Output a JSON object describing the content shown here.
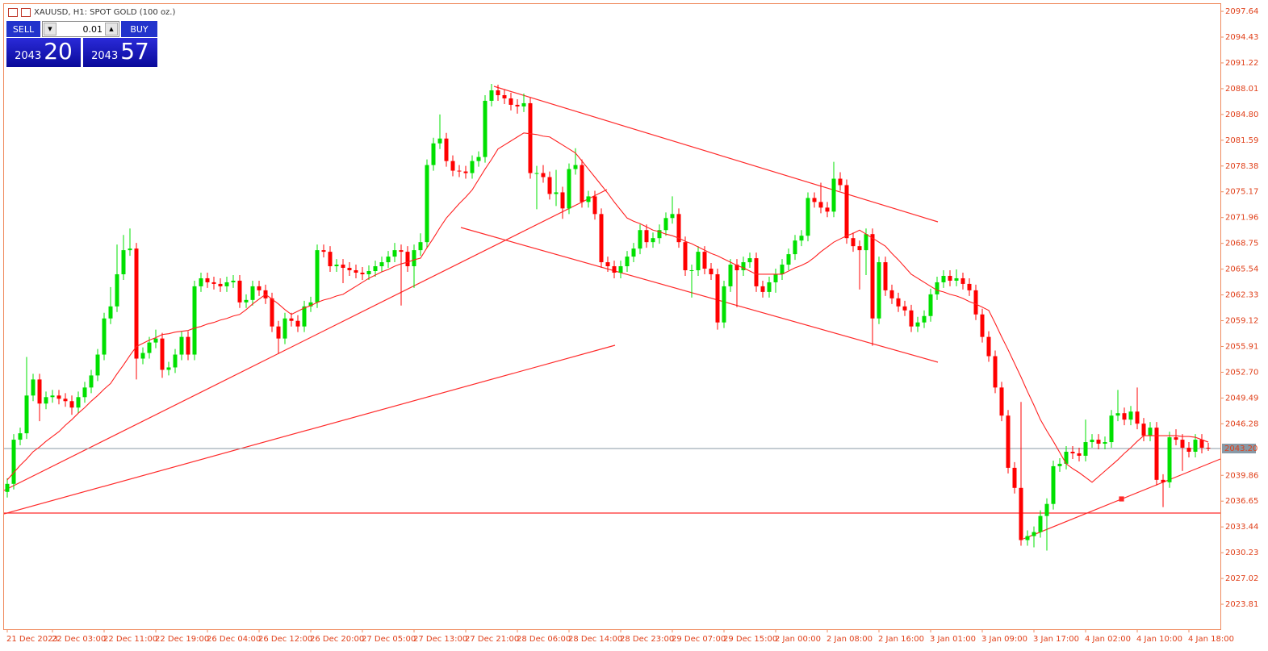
{
  "header": {
    "symbol": "XAUUSD, H1:  SPOT GOLD (100 oz.)"
  },
  "trade_panel": {
    "sell": "SELL",
    "lot": "0.01",
    "buy": "BUY",
    "bid_big": "2043",
    "bid_small": "20",
    "ask_big": "2043",
    "ask_small": "57"
  },
  "chart_data": {
    "type": "candlestick",
    "up_color": "#00e000",
    "down_color": "#ff0000",
    "grid": false,
    "categories": [
      "21 Dec 2023",
      null,
      null,
      null,
      null,
      null,
      null,
      "22 Dec 03:00",
      null,
      null,
      null,
      null,
      null,
      null,
      null,
      "22 Dec 11:00",
      null,
      null,
      null,
      null,
      null,
      null,
      null,
      "22 Dec 19:00",
      null,
      null,
      null,
      null,
      null,
      null,
      null,
      "26 Dec 04:00",
      null,
      null,
      null,
      null,
      null,
      null,
      null,
      "26 Dec 12:00",
      null,
      null,
      null,
      null,
      null,
      null,
      null,
      "26 Dec 20:00",
      null,
      null,
      null,
      null,
      null,
      null,
      null,
      "27 Dec 05:00",
      null,
      null,
      null,
      null,
      null,
      null,
      null,
      "27 Dec 13:00",
      null,
      null,
      null,
      null,
      null,
      null,
      null,
      "27 Dec 21:00",
      null,
      null,
      null,
      null,
      null,
      null,
      null,
      "28 Dec 06:00",
      null,
      null,
      null,
      null,
      null,
      null,
      null,
      "28 Dec 14:00",
      null,
      null,
      null,
      null,
      null,
      null,
      null,
      "28 Dec 23:00",
      null,
      null,
      null,
      null,
      null,
      null,
      null,
      "29 Dec 07:00",
      null,
      null,
      null,
      null,
      null,
      null,
      null,
      "29 Dec 15:00",
      null,
      null,
      null,
      null,
      null,
      null,
      null,
      "2 Jan 00:00",
      null,
      null,
      null,
      null,
      null,
      null,
      null,
      "2 Jan 08:00",
      null,
      null,
      null,
      null,
      null,
      null,
      null,
      "2 Jan 16:00",
      null,
      null,
      null,
      null,
      null,
      null,
      null,
      "3 Jan 01:00",
      null,
      null,
      null,
      null,
      null,
      null,
      null,
      "3 Jan 09:00",
      null,
      null,
      null,
      null,
      null,
      null,
      null,
      "3 Jan 17:00",
      null,
      null,
      null,
      null,
      null,
      null,
      null,
      "4 Jan 02:00",
      null,
      null,
      null,
      null,
      null,
      null,
      null,
      "4 Jan 10:00",
      null,
      null,
      null,
      null,
      null,
      null,
      null,
      "4 Jan 18:00",
      null,
      null,
      null
    ],
    "open": [
      2037.8,
      2038.8,
      2044.3,
      2045.1,
      2049.8,
      2051.8,
      2048.8,
      2049.6,
      2049.8,
      2049.4,
      2049.1,
      2048.3,
      2049.6,
      2050.8,
      2052.3,
      2054.9,
      2059.4,
      2060.9,
      2064.9,
      2067.9,
      2068.1,
      2054.4,
      2055.1,
      2056.4,
      2056.9,
      2053.0,
      2053.3,
      2054.9,
      2057.1,
      2054.9,
      2063.4,
      2064.4,
      2063.9,
      2063.7,
      2063.4,
      2063.9,
      2064.1,
      2061.4,
      2061.7,
      2063.4,
      2062.9,
      2061.9,
      2058.4,
      2056.9,
      2059.4,
      2059.1,
      2058.4,
      2060.9,
      2061.4,
      2067.9,
      2067.7,
      2065.9,
      2066.1,
      2065.7,
      2065.4,
      2065.1,
      2064.9,
      2065.3,
      2065.9,
      2066.4,
      2067.1,
      2067.9,
      2067.7,
      2065.9,
      2067.9,
      2068.9,
      2078.5,
      2081.2,
      2081.8,
      2079.0,
      2077.8,
      2077.7,
      2077.5,
      2079.0,
      2079.5,
      2086.5,
      2087.8,
      2087.2,
      2086.8,
      2086.0,
      2085.8,
      2086.2,
      2077.5,
      2077.5,
      2077.0,
      2074.9,
      2075.1,
      2073.1,
      2078.0,
      2078.5,
      2073.9,
      2074.6,
      2072.4,
      2066.4,
      2065.9,
      2065.1,
      2065.9,
      2067.1,
      2068.1,
      2070.4,
      2068.9,
      2069.4,
      2070.4,
      2071.9,
      2072.4,
      2068.9,
      2065.4,
      2065.4,
      2067.7,
      2065.6,
      2064.9,
      2058.9,
      2063.4,
      2066.1,
      2065.4,
      2066.4,
      2066.9,
      2063.4,
      2062.7,
      2063.9,
      2064.9,
      2066.1,
      2067.4,
      2069.1,
      2069.7,
      2074.4,
      2073.9,
      2073.2,
      2072.7,
      2076.8,
      2076.0,
      2069.4,
      2068.4,
      2067.9,
      2069.9,
      2059.4,
      2066.4,
      2062.9,
      2061.9,
      2060.9,
      2060.4,
      2058.4,
      2058.9,
      2059.7,
      2062.4,
      2063.9,
      2064.7,
      2064.1,
      2064.4,
      2063.7,
      2062.9,
      2059.9,
      2057.1,
      2054.7,
      2050.8,
      2047.3,
      2040.8,
      2038.3,
      2031.8,
      2032.3,
      2032.8,
      2034.8,
      2036.3,
      2041.0,
      2041.3,
      2042.8,
      2042.6,
      2042.3,
      2044.0,
      2044.3,
      2043.8,
      2044.0,
      2047.3,
      2047.6,
      2046.8,
      2047.8,
      2046.3,
      2044.8,
      2045.8,
      2039.3,
      2039.0,
      2044.6,
      2044.3,
      2043.3,
      2042.8,
      2044.3,
      2043.3
    ],
    "high": [
      2039.5,
      2045.0,
      2045.8,
      2054.6,
      2052.5,
      2052.5,
      2050.3,
      2050.5,
      2050.5,
      2050.1,
      2049.8,
      2050.3,
      2051.5,
      2053.0,
      2055.6,
      2060.1,
      2063.3,
      2068.6,
      2069.8,
      2070.6,
      2068.8,
      2055.8,
      2057.1,
      2058.0,
      2057.6,
      2054.0,
      2055.6,
      2057.8,
      2057.8,
      2064.1,
      2065.1,
      2065.1,
      2064.6,
      2064.4,
      2064.6,
      2064.8,
      2064.8,
      2062.4,
      2064.1,
      2064.1,
      2063.6,
      2062.6,
      2059.1,
      2060.1,
      2060.1,
      2059.8,
      2061.6,
      2062.1,
      2068.6,
      2068.6,
      2068.4,
      2066.8,
      2066.8,
      2066.4,
      2066.1,
      2065.8,
      2066.0,
      2066.6,
      2067.1,
      2067.8,
      2068.8,
      2068.6,
      2068.4,
      2068.6,
      2070.0,
      2079.2,
      2081.9,
      2084.8,
      2082.5,
      2079.7,
      2078.5,
      2078.4,
      2079.7,
      2080.2,
      2087.2,
      2088.6,
      2088.5,
      2087.9,
      2087.5,
      2086.7,
      2087.4,
      2086.9,
      2078.4,
      2078.5,
      2077.7,
      2077.9,
      2075.8,
      2078.7,
      2080.6,
      2079.2,
      2075.3,
      2075.3,
      2073.1,
      2067.1,
      2066.6,
      2066.6,
      2067.8,
      2068.8,
      2071.1,
      2071.1,
      2070.1,
      2071.1,
      2072.6,
      2074.6,
      2073.1,
      2069.6,
      2066.1,
      2068.4,
      2068.4,
      2066.3,
      2065.6,
      2064.1,
      2066.8,
      2066.8,
      2067.1,
      2067.6,
      2067.6,
      2064.1,
      2064.6,
      2065.6,
      2066.8,
      2068.1,
      2069.8,
      2070.4,
      2075.1,
      2075.1,
      2076.3,
      2073.9,
      2078.9,
      2077.6,
      2076.7,
      2070.1,
      2069.1,
      2070.6,
      2070.6,
      2067.1,
      2067.1,
      2063.6,
      2062.6,
      2061.6,
      2061.1,
      2059.6,
      2060.4,
      2063.1,
      2064.6,
      2065.4,
      2065.4,
      2065.5,
      2065.1,
      2064.4,
      2063.6,
      2060.6,
      2057.8,
      2055.4,
      2051.5,
      2048.0,
      2041.5,
      2049.0,
      2033.0,
      2033.5,
      2035.5,
      2037.0,
      2041.7,
      2042.0,
      2043.5,
      2043.5,
      2043.3,
      2046.8,
      2045.0,
      2045.0,
      2044.7,
      2048.0,
      2050.5,
      2048.3,
      2048.5,
      2050.8,
      2047.0,
      2046.5,
      2046.5,
      2040.0,
      2045.3,
      2045.6,
      2045.0,
      2044.0,
      2045.0,
      2045.0,
      2043.9
    ],
    "low": [
      2037.1,
      2038.1,
      2043.6,
      2044.4,
      2049.1,
      2046.6,
      2048.1,
      2048.9,
      2048.7,
      2048.4,
      2047.4,
      2047.6,
      2048.9,
      2050.1,
      2051.6,
      2054.2,
      2058.7,
      2060.2,
      2064.2,
      2067.2,
      2051.8,
      2053.7,
      2054.4,
      2055.7,
      2052.0,
      2052.3,
      2052.6,
      2054.2,
      2054.2,
      2054.2,
      2062.7,
      2063.2,
      2063.0,
      2062.7,
      2062.7,
      2063.2,
      2060.7,
      2060.7,
      2061.0,
      2062.2,
      2061.2,
      2057.7,
      2055.0,
      2056.2,
      2058.4,
      2057.7,
      2057.7,
      2060.2,
      2060.7,
      2067.0,
      2065.2,
      2065.2,
      2063.8,
      2064.7,
      2064.4,
      2064.2,
      2064.2,
      2064.6,
      2065.2,
      2065.7,
      2066.4,
      2061.0,
      2065.2,
      2063.2,
      2067.2,
      2068.2,
      2077.8,
      2080.5,
      2078.3,
      2077.1,
      2077.0,
      2076.8,
      2076.8,
      2078.3,
      2078.8,
      2085.8,
      2086.5,
      2086.1,
      2085.3,
      2084.9,
      2085.1,
      2076.8,
      2073.0,
      2076.3,
      2074.2,
      2073.4,
      2071.8,
      2072.4,
      2077.3,
      2073.2,
      2073.2,
      2071.7,
      2065.7,
      2065.2,
      2064.4,
      2064.4,
      2065.2,
      2066.4,
      2067.4,
      2068.2,
      2068.2,
      2068.7,
      2069.7,
      2071.2,
      2068.2,
      2064.7,
      2062.0,
      2064.7,
      2064.9,
      2064.2,
      2058.0,
      2058.2,
      2062.7,
      2060.8,
      2064.7,
      2065.7,
      2062.7,
      2062.0,
      2062.0,
      2062.6,
      2064.2,
      2065.4,
      2066.7,
      2068.4,
      2069.0,
      2073.2,
      2072.5,
      2072.0,
      2072.0,
      2075.3,
      2068.7,
      2067.7,
      2063.0,
      2064.8,
      2056.0,
      2058.7,
      2062.2,
      2061.2,
      2060.2,
      2059.7,
      2057.7,
      2057.7,
      2058.2,
      2059.0,
      2061.7,
      2063.2,
      2063.4,
      2063.4,
      2063.0,
      2062.2,
      2059.2,
      2056.4,
      2054.0,
      2050.1,
      2046.6,
      2040.1,
      2037.6,
      2031.1,
      2031.1,
      2030.9,
      2032.1,
      2030.5,
      2035.6,
      2040.3,
      2040.6,
      2041.9,
      2041.6,
      2041.6,
      2043.3,
      2043.1,
      2043.1,
      2043.3,
      2046.6,
      2046.1,
      2046.1,
      2045.6,
      2044.1,
      2044.1,
      2038.6,
      2035.9,
      2038.3,
      2043.6,
      2040.4,
      2042.1,
      2042.1,
      2042.6,
      2042.9
    ],
    "close": [
      2038.8,
      2044.3,
      2045.1,
      2049.8,
      2051.8,
      2048.8,
      2049.6,
      2049.8,
      2049.4,
      2049.1,
      2048.3,
      2049.6,
      2050.8,
      2052.3,
      2054.9,
      2059.4,
      2060.9,
      2064.9,
      2067.9,
      2068.1,
      2054.4,
      2055.1,
      2056.4,
      2056.9,
      2053.0,
      2053.3,
      2054.9,
      2057.1,
      2054.9,
      2063.4,
      2064.4,
      2063.9,
      2063.7,
      2063.4,
      2063.9,
      2064.1,
      2061.4,
      2061.7,
      2063.4,
      2062.9,
      2061.9,
      2058.4,
      2056.9,
      2059.4,
      2059.1,
      2058.4,
      2060.9,
      2061.4,
      2067.9,
      2067.7,
      2065.9,
      2066.1,
      2065.7,
      2065.4,
      2065.1,
      2064.9,
      2065.3,
      2065.9,
      2066.4,
      2067.1,
      2067.9,
      2067.7,
      2065.9,
      2067.9,
      2068.9,
      2078.5,
      2081.2,
      2081.8,
      2079.0,
      2077.8,
      2077.7,
      2077.5,
      2079.0,
      2079.5,
      2086.5,
      2087.8,
      2087.2,
      2086.8,
      2086.0,
      2085.8,
      2086.2,
      2077.5,
      2077.5,
      2077.0,
      2074.9,
      2075.1,
      2073.1,
      2078.0,
      2078.5,
      2073.9,
      2074.6,
      2072.4,
      2066.4,
      2065.9,
      2065.1,
      2065.9,
      2067.1,
      2068.1,
      2070.4,
      2068.9,
      2069.4,
      2070.4,
      2071.9,
      2072.4,
      2068.9,
      2065.4,
      2065.4,
      2067.7,
      2065.6,
      2064.9,
      2058.9,
      2063.4,
      2066.1,
      2065.4,
      2066.4,
      2066.9,
      2063.4,
      2062.7,
      2063.9,
      2064.9,
      2066.1,
      2067.4,
      2069.1,
      2069.7,
      2074.4,
      2073.9,
      2073.2,
      2072.7,
      2076.8,
      2076.0,
      2069.4,
      2068.4,
      2067.9,
      2069.9,
      2059.4,
      2066.4,
      2062.9,
      2061.9,
      2060.9,
      2060.4,
      2058.4,
      2058.9,
      2059.7,
      2062.4,
      2063.9,
      2064.7,
      2064.1,
      2064.4,
      2063.7,
      2062.9,
      2059.9,
      2057.1,
      2054.7,
      2050.8,
      2047.3,
      2040.8,
      2038.3,
      2031.8,
      2032.3,
      2032.8,
      2034.8,
      2036.3,
      2041.0,
      2041.3,
      2042.8,
      2042.6,
      2042.3,
      2044.0,
      2044.3,
      2043.8,
      2044.0,
      2047.3,
      2047.6,
      2046.8,
      2047.8,
      2046.3,
      2044.8,
      2045.8,
      2039.3,
      2039.0,
      2044.6,
      2044.3,
      2043.3,
      2042.8,
      2044.3,
      2043.3,
      2043.2
    ],
    "overlay_line": {
      "color": "#ff2020",
      "values": [
        2039.3,
        2040.2,
        2041.1,
        2041.9,
        2042.8,
        2043.4,
        2044.1,
        2044.7,
        2045.3,
        2046.1,
        2046.8,
        2047.6,
        2048.3,
        2049.1,
        2049.8,
        2050.6,
        2051.3,
        2052.5,
        2053.6,
        2054.8,
        2055.9,
        2056.3,
        2056.7,
        2057.0,
        2057.4,
        2057.5,
        2057.7,
        2057.8,
        2057.9,
        2058.2,
        2058.4,
        2058.7,
        2058.9,
        2059.2,
        2059.4,
        2059.7,
        2059.9,
        2060.5,
        2061.2,
        2061.8,
        2062.4,
        2061.8,
        2061.2,
        2060.5,
        2059.9,
        2060.3,
        2060.7,
        2061.0,
        2061.4,
        2061.7,
        2061.9,
        2062.2,
        2062.4,
        2062.9,
        2063.4,
        2063.9,
        2064.4,
        2064.8,
        2065.2,
        2065.5,
        2065.9,
        2066.2,
        2066.4,
        2066.7,
        2066.9,
        2068.2,
        2069.4,
        2070.7,
        2071.9,
        2072.8,
        2073.7,
        2074.5,
        2075.4,
        2076.7,
        2078.0,
        2079.2,
        2080.5,
        2081.0,
        2081.5,
        2082.0,
        2082.5,
        2082.4,
        2082.3,
        2082.1,
        2082.0,
        2081.5,
        2081.0,
        2080.5,
        2080.0,
        2079.0,
        2078.0,
        2077.0,
        2076.0,
        2075.0,
        2073.9,
        2072.9,
        2071.9,
        2071.5,
        2071.2,
        2070.8,
        2070.4,
        2070.2,
        2069.9,
        2069.7,
        2069.4,
        2069.0,
        2068.7,
        2068.3,
        2067.9,
        2067.5,
        2067.2,
        2066.8,
        2066.4,
        2066.0,
        2065.7,
        2065.3,
        2064.9,
        2064.9,
        2064.9,
        2064.9,
        2064.9,
        2065.3,
        2065.7,
        2066.0,
        2066.4,
        2067.0,
        2067.7,
        2068.3,
        2068.9,
        2069.3,
        2069.7,
        2070.0,
        2070.4,
        2069.9,
        2069.4,
        2068.9,
        2068.4,
        2067.5,
        2066.7,
        2065.8,
        2064.9,
        2064.4,
        2063.9,
        2063.4,
        2062.9,
        2062.7,
        2062.4,
        2062.2,
        2061.9,
        2061.5,
        2061.2,
        2060.8,
        2060.4,
        2058.8,
        2057.1,
        2055.5,
        2053.8,
        2052.1,
        2050.3,
        2048.6,
        2046.8,
        2045.4,
        2044.1,
        2042.7,
        2041.3,
        2040.7,
        2040.2,
        2039.6,
        2039.0,
        2039.7,
        2040.4,
        2041.1,
        2041.8,
        2042.6,
        2043.3,
        2044.1,
        2044.8,
        2044.8,
        2044.8,
        2044.8,
        2044.8,
        2044.8,
        2044.7,
        2044.7,
        2044.6,
        2044.3,
        2044.0
      ]
    },
    "bid_line": {
      "value": 2043.2,
      "label": "2043.20"
    },
    "ylim": [
      2020.7,
      2098.55
    ],
    "yticks": [
      2097.64,
      2094.43,
      2091.22,
      2088.01,
      {
        "value": 2084.8,
        "label": "2084.80"
      },
      2081.59,
      2078.38,
      2075.17,
      2071.96,
      2068.75,
      2065.54,
      2062.33,
      2059.12,
      2055.91,
      {
        "value": 2052.7,
        "label": "2052.70"
      },
      2049.49,
      2046.28,
      2039.86,
      2036.65,
      2033.44,
      2030.23,
      2027.02,
      2023.81
    ]
  }
}
